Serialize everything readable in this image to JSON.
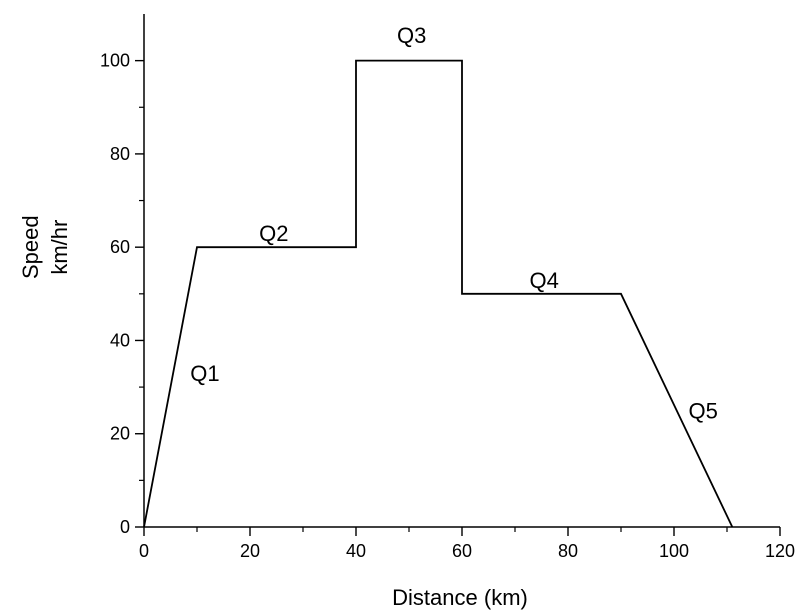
{
  "chart_data": {
    "type": "line",
    "title": "",
    "xlabel": "Distance (km)",
    "ylabel_lines": [
      "Speed",
      "km/hr"
    ],
    "xlim": [
      0,
      120
    ],
    "ylim": [
      0,
      110
    ],
    "x_ticks": [
      0,
      20,
      40,
      60,
      80,
      100,
      120
    ],
    "y_ticks": [
      0,
      20,
      40,
      60,
      80,
      100
    ],
    "grid": false,
    "legend": "none",
    "line_color": "#000000",
    "series": [
      {
        "x": [
          0,
          10,
          40,
          40,
          60,
          60,
          90,
          111
        ],
        "y": [
          0,
          60,
          60,
          100,
          100,
          50,
          50,
          0
        ]
      }
    ],
    "annotations": [
      {
        "text": "Q1",
        "x": 11.5,
        "y": 33
      },
      {
        "text": "Q2",
        "x": 24.5,
        "y": 63
      },
      {
        "text": "Q3",
        "x": 50.5,
        "y": 105.5
      },
      {
        "text": "Q4",
        "x": 75.5,
        "y": 53
      },
      {
        "text": "Q5",
        "x": 105.5,
        "y": 25
      }
    ]
  }
}
